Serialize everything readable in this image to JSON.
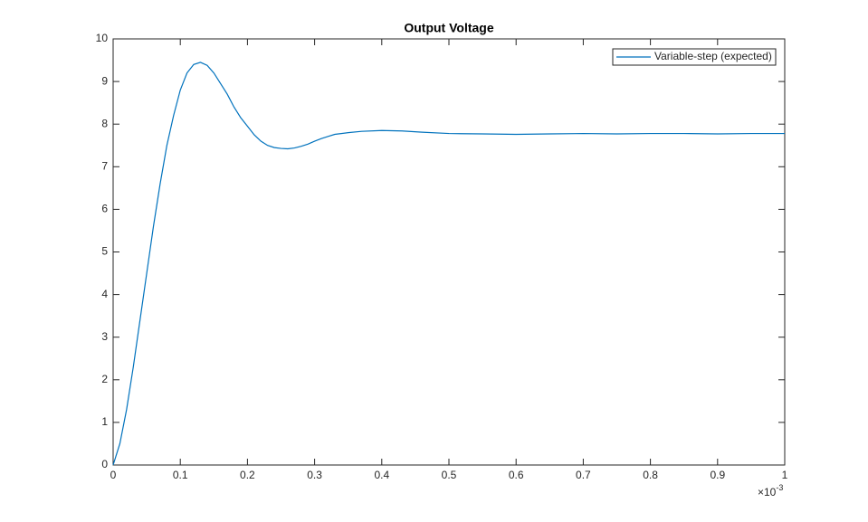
{
  "chart_data": {
    "type": "line",
    "title": "Output Voltage",
    "x": [
      0,
      0.01,
      0.02,
      0.03,
      0.04,
      0.05,
      0.06,
      0.07,
      0.08,
      0.09,
      0.1,
      0.11,
      0.12,
      0.13,
      0.14,
      0.15,
      0.16,
      0.17,
      0.18,
      0.19,
      0.2,
      0.21,
      0.22,
      0.23,
      0.24,
      0.25,
      0.26,
      0.27,
      0.28,
      0.29,
      0.3,
      0.31,
      0.32,
      0.33,
      0.35,
      0.37,
      0.4,
      0.43,
      0.46,
      0.5,
      0.55,
      0.6,
      0.65,
      0.7,
      0.75,
      0.8,
      0.85,
      0.9,
      0.95,
      1
    ],
    "series": [
      {
        "name": "Variable-step (expected)",
        "color": "#0072bd",
        "values": [
          0,
          0.5,
          1.3,
          2.3,
          3.4,
          4.5,
          5.6,
          6.6,
          7.5,
          8.2,
          8.8,
          9.2,
          9.4,
          9.45,
          9.38,
          9.2,
          8.95,
          8.7,
          8.4,
          8.15,
          7.95,
          7.75,
          7.6,
          7.5,
          7.45,
          7.43,
          7.42,
          7.44,
          7.48,
          7.53,
          7.6,
          7.66,
          7.71,
          7.76,
          7.8,
          7.83,
          7.85,
          7.84,
          7.81,
          7.78,
          7.77,
          7.76,
          7.77,
          7.78,
          7.77,
          7.78,
          7.78,
          7.77,
          7.78,
          7.78
        ]
      }
    ],
    "xlim": [
      0,
      1
    ],
    "xticks": [
      0,
      0.1,
      0.2,
      0.3,
      0.4,
      0.5,
      0.6,
      0.7,
      0.8,
      0.9,
      1
    ],
    "ylim": [
      0,
      10
    ],
    "yticks": [
      0,
      1,
      2,
      3,
      4,
      5,
      6,
      7,
      8,
      9,
      10
    ],
    "x_multiplier": "×10",
    "x_multiplier_exponent": "-3",
    "legend": "top-right"
  }
}
